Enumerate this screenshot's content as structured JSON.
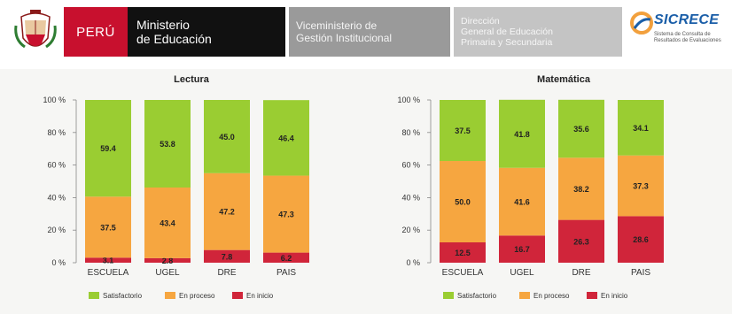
{
  "header": {
    "country": "PERÚ",
    "ministry_line1": "Ministerio",
    "ministry_line2": "de Educación",
    "vice_line1": "Viceministerio de",
    "vice_line2": "Gestión Institucional",
    "dir_line1": "Dirección",
    "dir_line2": "General de Educación",
    "dir_line3": "Primaria y Secundaria",
    "logo_title": "SICRECE",
    "logo_sub": "Sistema de Consulta de Resultados de Evaluaciones"
  },
  "colors": {
    "satisfactorio": "#9acd32",
    "en_proceso": "#f6a640",
    "en_inicio": "#d0253a",
    "peru_red": "#c8102e",
    "ministry_black": "#111111"
  },
  "chart_data": [
    {
      "type": "bar",
      "stacked": true,
      "title": "Lectura",
      "categories": [
        "ESCUELA",
        "UGEL",
        "DRE",
        "PAIS"
      ],
      "y_tick_labels": [
        "0 %",
        "20 %",
        "40 %",
        "60 %",
        "80 %",
        "100 %"
      ],
      "ylim": [
        0,
        100
      ],
      "legend_position": "bottom",
      "series": [
        {
          "name": "En inicio",
          "values": [
            3.1,
            2.8,
            7.8,
            6.2
          ],
          "labels": [
            "3.1",
            "2.8",
            "7.8",
            "6.2"
          ]
        },
        {
          "name": "En proceso",
          "values": [
            37.5,
            43.4,
            47.2,
            47.3
          ],
          "labels": [
            "37.5",
            "43.4",
            "47.2",
            "47.3"
          ]
        },
        {
          "name": "Satisfactorio",
          "values": [
            59.4,
            53.8,
            45.0,
            46.4
          ],
          "labels": [
            "59.4",
            "53.8",
            "45.0",
            "46.4"
          ]
        }
      ]
    },
    {
      "type": "bar",
      "stacked": true,
      "title": "Matemática",
      "categories": [
        "ESCUELA",
        "UGEL",
        "DRE",
        "PAIS"
      ],
      "y_tick_labels": [
        "0 %",
        "20 %",
        "40 %",
        "60 %",
        "80 %",
        "100 %"
      ],
      "ylim": [
        0,
        100
      ],
      "legend_position": "bottom",
      "series": [
        {
          "name": "En inicio",
          "values": [
            12.5,
            16.7,
            26.3,
            28.6
          ],
          "labels": [
            "12.5",
            "16.7",
            "26.3",
            "28.6"
          ]
        },
        {
          "name": "En proceso",
          "values": [
            50.0,
            41.6,
            38.2,
            37.3
          ],
          "labels": [
            "50.0",
            "41.6",
            "38.2",
            "37.3"
          ]
        },
        {
          "name": "Satisfactorio",
          "values": [
            37.5,
            41.8,
            35.6,
            34.1
          ],
          "labels": [
            "37.5",
            "41.8",
            "35.6",
            "34.1"
          ]
        }
      ]
    }
  ],
  "legend": {
    "satisfactorio": "Satisfactorio",
    "en_proceso": "En proceso",
    "en_inicio": "En inicio"
  }
}
